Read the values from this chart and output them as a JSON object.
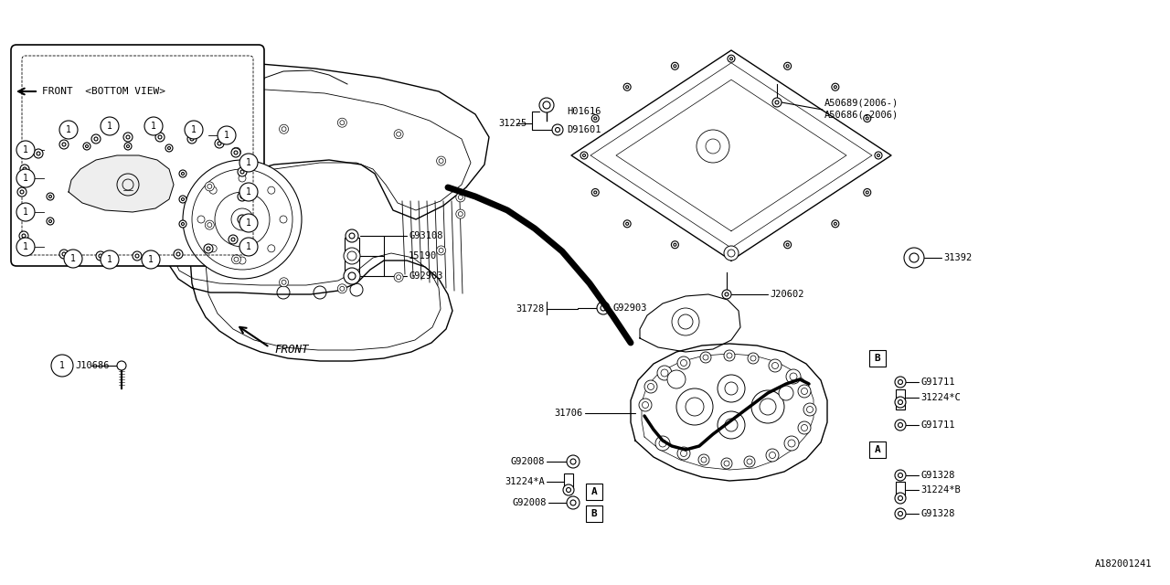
{
  "bg_color": "#ffffff",
  "line_color": "#000000",
  "part_number_ref": "A182001241",
  "labels": {
    "G92008_1": "G92008",
    "G92008_2": "G92008",
    "31224A": "31224*A",
    "31706": "31706",
    "31728": "31728",
    "G92903_1": "G92903",
    "G92903_2": "G92903",
    "15190": "15190",
    "G93108": "G93108",
    "G91328_1": "G91328",
    "G91328_2": "G91328",
    "31224B": "31224*B",
    "G91711_1": "G91711",
    "G91711_2": "G91711",
    "31224C": "31224*C",
    "J20602": "J20602",
    "31392": "31392",
    "31225": "31225",
    "D91601": "D91601",
    "H01616": "H01616",
    "A50686": "A50686(-2006)",
    "A50689": "A50689(2006-)",
    "J10686": "J10686",
    "front": "FRONT",
    "front_bv": "FRONT  <BOTTOM VIEW>"
  }
}
